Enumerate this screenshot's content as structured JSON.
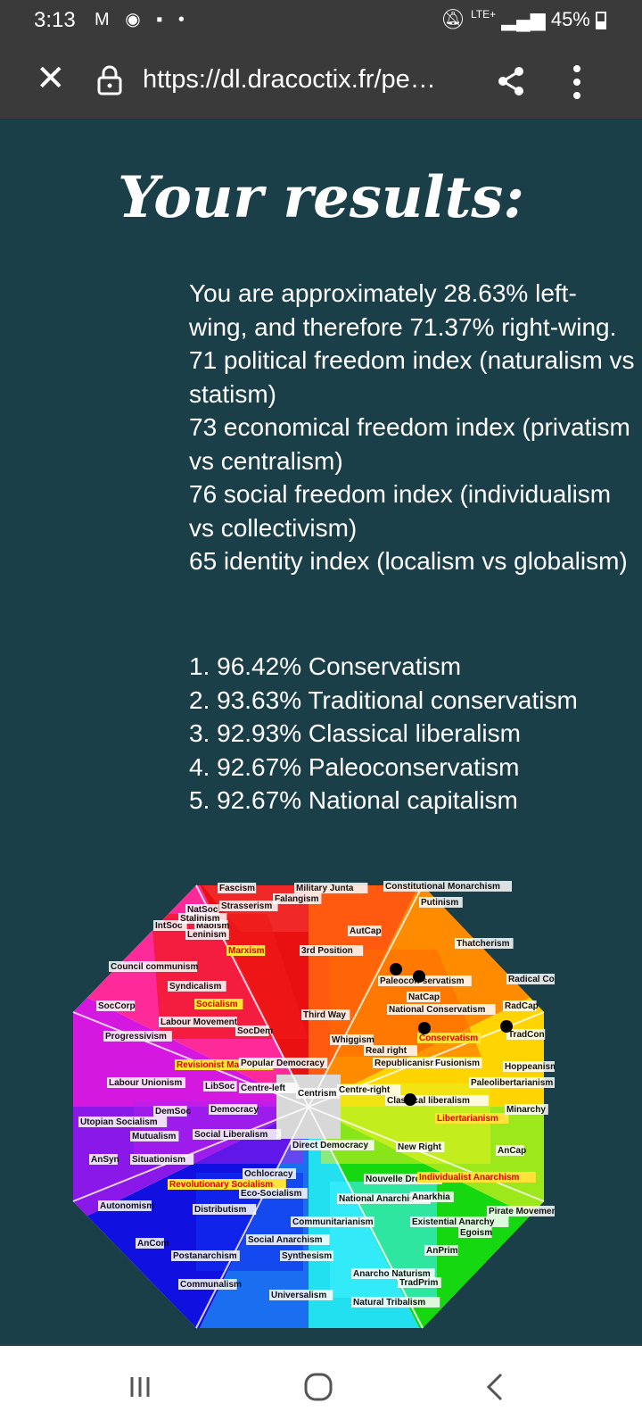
{
  "status": {
    "time": "3:13",
    "notifications": "M ◉ ▪ •",
    "battery": "45%",
    "network": "LTE+"
  },
  "browser": {
    "url": "https://dl.dracoctix.fr/pe…"
  },
  "page": {
    "title": "Your results:",
    "summary": [
      "You are approximately 28.63% left-wing, and therefore 71.37% right-wing.",
      "71 political freedom index (naturalism vs statism)",
      "73 economical freedom index (privatism vs centralism)",
      "76 social freedom index (individualism vs collectivism)",
      "65 identity index (localism vs globalism)"
    ],
    "results": [
      "1. 96.42% Conservatism",
      "2. 93.63% Traditional conservatism",
      "3. 92.93% Classical liberalism",
      "4. 92.67% Paleoconservatism",
      "5. 92.67% National capitalism"
    ]
  },
  "chart_data": {
    "type": "political-compass-octagon",
    "center_label": "Centrism",
    "labels": [
      "Fascism",
      "Military Junta",
      "Constitutional Monarchism",
      "Putinism",
      "Falangism",
      "NatSoc",
      "Strasserism",
      "IntSoc",
      "Maoism",
      "Stalinism",
      "Leninism",
      "Marxism",
      "3rd Position",
      "AutCap",
      "Thatcherism",
      "Council communism",
      "Syndicalism",
      "Socialism",
      "Radical Conservatism",
      "RadCap",
      "SocCorp",
      "Labour Movement",
      "Progressivism",
      "Revisionist Marxism",
      "Popular Democracy",
      "SocDem",
      "Third Way",
      "Whiggism",
      "National Conservatism",
      "Conservatism",
      "TradCon",
      "Republicanism",
      "Fusionism",
      "Hoppeanism",
      "Labour Unionism",
      "LibSoc",
      "Centrism",
      "Centre-left",
      "Centre-right",
      "Paleolibertarianism",
      "Utopian Socialism",
      "DemSoc",
      "Democracy",
      "Libertarianism",
      "Minarchy",
      "Mutualism",
      "Social Liberalism",
      "Direct Democracy",
      "New Right",
      "AnCap",
      "AnSyn",
      "Situationism",
      "Revolutionary Socialism",
      "Ochlocracy",
      "Nouvelle Droite",
      "Individualist Anarchism",
      "Autonomism",
      "Eco-Socialism",
      "National Anarchism",
      "Anarkhia",
      "Pirate Movement",
      "Distributism",
      "Communitarianism",
      "Existential Anarchy",
      "Egoism",
      "AnCom",
      "Social Anarchism",
      "Postanarchism",
      "Synthesism",
      "AnPrim",
      "Communalism",
      "Anarcho Naturism",
      "TradPrim",
      "Universalism",
      "Natural Tribalism",
      "Real right",
      "Classical liberalism",
      "NatCap",
      "Paleocon-servatism"
    ],
    "markers": [
      "Paleoconservatism",
      "NatCap",
      "Conservatism",
      "TradCon",
      "Classical liberalism"
    ]
  }
}
